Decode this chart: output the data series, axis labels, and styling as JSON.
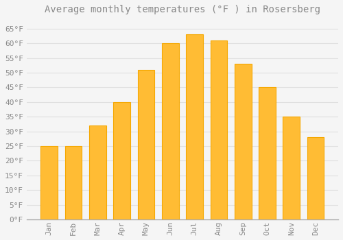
{
  "title": "Average monthly temperatures (°F ) in Rosersberg",
  "months": [
    "Jan",
    "Feb",
    "Mar",
    "Apr",
    "May",
    "Jun",
    "Jul",
    "Aug",
    "Sep",
    "Oct",
    "Nov",
    "Dec"
  ],
  "values": [
    25,
    25,
    32,
    40,
    51,
    60,
    63,
    61,
    53,
    45,
    35,
    28
  ],
  "bar_color": "#FFBC34",
  "bar_edge_color": "#F5A800",
  "background_color": "#F5F5F5",
  "plot_bg_color": "#F5F5F5",
  "grid_color": "#E0E0E0",
  "tick_color": "#888888",
  "title_color": "#888888",
  "ylim": [
    0,
    68
  ],
  "yticks": [
    0,
    5,
    10,
    15,
    20,
    25,
    30,
    35,
    40,
    45,
    50,
    55,
    60,
    65
  ],
  "title_fontsize": 10,
  "tick_fontsize": 8,
  "font_family": "monospace"
}
